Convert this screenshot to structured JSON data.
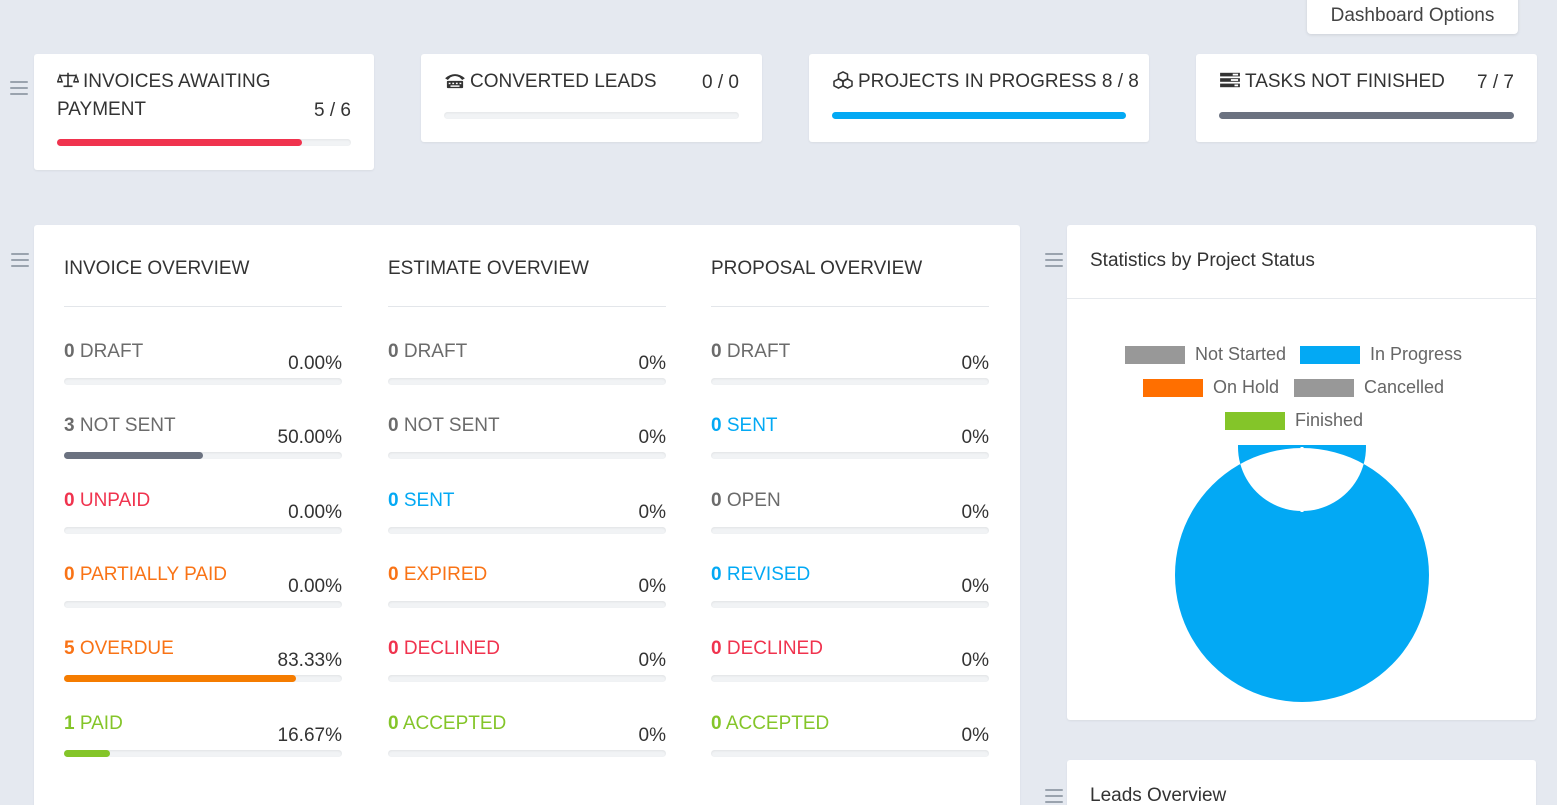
{
  "dashboard_options_label": "Dashboard Options",
  "kpis": [
    {
      "title": "INVOICES AWAITING",
      "title2": "PAYMENT",
      "count": "5 / 6",
      "fraction": 0.8333,
      "color": "#f0334e",
      "icon": "balance-scale-icon"
    },
    {
      "title": "CONVERTED LEADS",
      "count": "0 / 0",
      "fraction": 0,
      "color": "#c0c4c8",
      "icon": "tty-icon"
    },
    {
      "title": "PROJECTS IN PROGRESS 8 / 8",
      "count": "",
      "fraction": 1,
      "color": "#03a9f4",
      "icon": "cubes-icon"
    },
    {
      "title": "TASKS NOT FINISHED",
      "count": "7 / 7",
      "fraction": 1,
      "color": "#6b7280",
      "icon": "tasks-icon"
    }
  ],
  "overview": {
    "columns": [
      {
        "title": "INVOICE OVERVIEW",
        "items": [
          {
            "count": "0",
            "label": "DRAFT",
            "pct": "0.00%",
            "fraction": 0,
            "color": "#6b6b6b",
            "bar": "#6b6b6b"
          },
          {
            "count": "3",
            "label": "NOT SENT",
            "pct": "50.00%",
            "fraction": 0.5,
            "color": "#6b6b6b",
            "bar": "#6b7280"
          },
          {
            "count": "0",
            "label": "UNPAID",
            "pct": "0.00%",
            "fraction": 0,
            "color": "#f0334e",
            "bar": "#f0334e"
          },
          {
            "count": "0",
            "label": "PARTIALLY PAID",
            "pct": "0.00%",
            "fraction": 0,
            "color": "#f97316",
            "bar": "#f97316"
          },
          {
            "count": "5",
            "label": "OVERDUE",
            "pct": "83.33%",
            "fraction": 0.8333,
            "color": "#f97316",
            "bar": "#f57c00"
          },
          {
            "count": "1",
            "label": "PAID",
            "pct": "16.67%",
            "fraction": 0.1667,
            "color": "#84c529",
            "bar": "#84c529"
          }
        ]
      },
      {
        "title": "ESTIMATE OVERVIEW",
        "items": [
          {
            "count": "0",
            "label": "DRAFT",
            "pct": "0%",
            "fraction": 0,
            "color": "#6b6b6b",
            "bar": "#6b6b6b"
          },
          {
            "count": "0",
            "label": "NOT SENT",
            "pct": "0%",
            "fraction": 0,
            "color": "#6b6b6b",
            "bar": "#6b6b6b"
          },
          {
            "count": "0",
            "label": "SENT",
            "pct": "0%",
            "fraction": 0,
            "color": "#03a9f4",
            "bar": "#03a9f4"
          },
          {
            "count": "0",
            "label": "EXPIRED",
            "pct": "0%",
            "fraction": 0,
            "color": "#f97316",
            "bar": "#f97316"
          },
          {
            "count": "0",
            "label": "DECLINED",
            "pct": "0%",
            "fraction": 0,
            "color": "#f0334e",
            "bar": "#f0334e"
          },
          {
            "count": "0",
            "label": "ACCEPTED",
            "pct": "0%",
            "fraction": 0,
            "color": "#84c529",
            "bar": "#84c529"
          }
        ]
      },
      {
        "title": "PROPOSAL OVERVIEW",
        "items": [
          {
            "count": "0",
            "label": "DRAFT",
            "pct": "0%",
            "fraction": 0,
            "color": "#6b6b6b",
            "bar": "#6b6b6b"
          },
          {
            "count": "0",
            "label": "SENT",
            "pct": "0%",
            "fraction": 0,
            "color": "#03a9f4",
            "bar": "#03a9f4"
          },
          {
            "count": "0",
            "label": "OPEN",
            "pct": "0%",
            "fraction": 0,
            "color": "#6b6b6b",
            "bar": "#6b6b6b"
          },
          {
            "count": "0",
            "label": "REVISED",
            "pct": "0%",
            "fraction": 0,
            "color": "#03a9f4",
            "bar": "#03a9f4"
          },
          {
            "count": "0",
            "label": "DECLINED",
            "pct": "0%",
            "fraction": 0,
            "color": "#f0334e",
            "bar": "#f0334e"
          },
          {
            "count": "0",
            "label": "ACCEPTED",
            "pct": "0%",
            "fraction": 0,
            "color": "#84c529",
            "bar": "#84c529"
          }
        ]
      }
    ]
  },
  "project_stats": {
    "title": "Statistics by Project Status"
  },
  "chart_data": {
    "type": "pie",
    "donut": true,
    "categories": [
      "Not Started",
      "In Progress",
      "On Hold",
      "Cancelled",
      "Finished"
    ],
    "values": [
      0,
      8,
      0,
      0,
      0
    ],
    "colors": [
      "#989898",
      "#03a9f4",
      "#ff6f00",
      "#989898",
      "#84c529"
    ],
    "legend": "top"
  },
  "leads_overview": {
    "title": "Leads Overview"
  }
}
